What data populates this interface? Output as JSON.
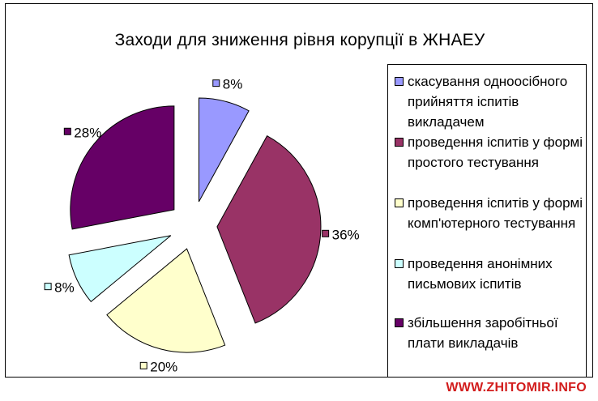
{
  "chart_data": {
    "type": "pie",
    "title": "Заходи для зниження рівня корупції в ЖНАЕУ",
    "categories": [
      "скасування одноосібного прийняття іспитів викладачем",
      "проведення іспитів у формі простого тестування",
      "проведення іспитів у формі комп'ютерного тестування",
      "проведення анонімних письмових іспитів",
      "збільшення заробітньої плати викладачів"
    ],
    "values": [
      8,
      36,
      20,
      8,
      28
    ],
    "data_labels": [
      "8%",
      "36%",
      "20%",
      "8%",
      "28%"
    ],
    "colors": [
      "#9999ff",
      "#993366",
      "#ffffcc",
      "#ccffff",
      "#660066"
    ],
    "exploded": true,
    "legend_position": "right"
  },
  "watermark": "WWW.ZHITOMIR.INFO"
}
